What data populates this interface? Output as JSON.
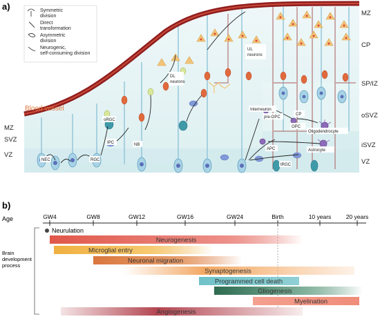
{
  "panel_a": {
    "label": "a)",
    "legend": [
      {
        "text": "Symmetric division",
        "lines": [
          "Symmetric",
          "division"
        ],
        "icon": "symmetric-arrow-icon"
      },
      {
        "text": "Direct transformation",
        "lines": [
          "Direct",
          "transformation"
        ],
        "icon": "direct-arrow-icon"
      },
      {
        "text": "Asymmetric division",
        "lines": [
          "Asymmetric",
          "division"
        ],
        "icon": "asymmetric-arrow-icon"
      },
      {
        "text": "Neurogenic, self-consuming division",
        "lines": [
          "Neurogenic,",
          "self-consuming division"
        ],
        "icon": "neurogenic-arrow-icon"
      }
    ],
    "blood_vessel_label": "Blood vessel",
    "zones_left": [
      "MZ",
      "SVZ",
      "VZ"
    ],
    "zones_right": [
      "MZ",
      "CP",
      "SP/IZ",
      "oSVZ",
      "iSVZ",
      "VZ"
    ],
    "cell_labels": {
      "nec": "NEC",
      "rgc": "RGC",
      "orgc": "oRGC",
      "ipc": "IPC",
      "nb": "NB",
      "dl_neurons": [
        "DL",
        "neurons"
      ],
      "ul_neurons": [
        "UL",
        "neurons"
      ],
      "interneuron": "Interneuron",
      "pre_opc": "pre-OPC",
      "opc": "OPC",
      "cp": "CP",
      "oligodendrocyte": "Oligodendrocyte",
      "apc": "APC",
      "astrocyte": "Astrocyte",
      "trgc": "tRGC"
    },
    "colors": {
      "vessel": "#8f1d1d",
      "background": "#e4f3f3",
      "neuron": "#e8b86a",
      "rgc": "#7bb6d3",
      "glia": "#8e6bb8"
    }
  },
  "panel_b": {
    "label": "b)",
    "age_label": "Age",
    "ages": [
      "GW4",
      "GW8",
      "GW12",
      "GW16",
      "GW24",
      "Birth",
      "10 years",
      "20 years"
    ],
    "neurulation_label": "Neurulation",
    "process_label": [
      "Brain",
      "development",
      "process"
    ],
    "bars": [
      {
        "label": "Neurogenesis",
        "color": "#e0574a"
      },
      {
        "label": "Microglial entry",
        "color": "#f0b040"
      },
      {
        "label": "Neuronal migration",
        "color": "#d9773e"
      },
      {
        "label": "Synaptogenesis",
        "color": "#f3a863"
      },
      {
        "label": "Programmed cell death",
        "color": "#6fc2c8"
      },
      {
        "label": "Gliogenesis",
        "color": "#4e8c6f"
      },
      {
        "label": "Myelination",
        "color": "#f08c7a"
      },
      {
        "label": "Angiogenesis",
        "color": "#b34550"
      }
    ]
  }
}
